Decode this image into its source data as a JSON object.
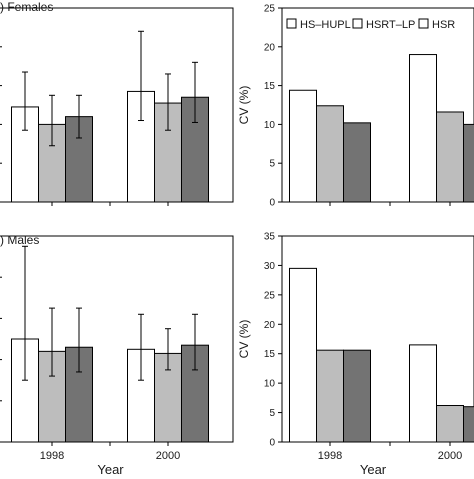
{
  "colors": {
    "HS-HUPL": "#ffffff",
    "HSRT-LP": "#bdbdbd",
    "HSRT-third": "#737373",
    "axis": "#000000"
  },
  "chart_data": [
    {
      "id": "females_mean",
      "type": "bar",
      "title": ") Females",
      "xlabel": "",
      "ylabel": "",
      "categories": [
        "1998",
        "2000"
      ],
      "category_labels_shown": false,
      "ylim": [
        0,
        100
      ],
      "series": [
        {
          "name": "HS–HUPL",
          "color": "#ffffff",
          "values": [
            49,
            57
          ],
          "err_high": [
            67,
            88
          ],
          "err_low": [
            37,
            42
          ]
        },
        {
          "name": "HSRT–LP",
          "color": "#bdbdbd",
          "values": [
            40,
            51
          ],
          "err_high": [
            55,
            66
          ],
          "err_low": [
            29,
            37
          ]
        },
        {
          "name": "HSRT",
          "color": "#737373",
          "values": [
            44,
            54
          ],
          "err_high": [
            55,
            72
          ],
          "err_low": [
            33,
            41
          ]
        }
      ]
    },
    {
      "id": "females_cv",
      "type": "bar",
      "title": "",
      "xlabel": "",
      "ylabel": "CV (%)",
      "categories": [
        "1998",
        "2000"
      ],
      "category_labels_shown": false,
      "yticks": [
        0,
        5,
        10,
        15,
        20,
        25
      ],
      "ylim": [
        0,
        25
      ],
      "legend": {
        "placement": "top",
        "entries": [
          "HS–HUPL",
          "HSRT–LP",
          "HSR"
        ]
      },
      "series": [
        {
          "name": "HS–HUPL",
          "color": "#ffffff",
          "values": [
            14.4,
            19.0
          ]
        },
        {
          "name": "HSRT–LP",
          "color": "#bdbdbd",
          "values": [
            12.4,
            11.6
          ]
        },
        {
          "name": "HSRT",
          "color": "#737373",
          "values": [
            10.2,
            10.0
          ]
        }
      ]
    },
    {
      "id": "males_mean",
      "type": "bar",
      "title": ") Males",
      "xlabel": "Year",
      "ylabel": "",
      "categories": [
        "1998",
        "2000"
      ],
      "category_labels_shown": true,
      "ylim": [
        0,
        100
      ],
      "series": [
        {
          "name": "HS–HUPL",
          "color": "#ffffff",
          "values": [
            50,
            45
          ],
          "err_high": [
            95,
            62
          ],
          "err_low": [
            30,
            30
          ]
        },
        {
          "name": "HSRT–LP",
          "color": "#bdbdbd",
          "values": [
            44,
            43
          ],
          "err_high": [
            65,
            55
          ],
          "err_low": [
            32,
            35
          ]
        },
        {
          "name": "HSRT",
          "color": "#737373",
          "values": [
            46,
            47
          ],
          "err_high": [
            65,
            62
          ],
          "err_low": [
            34,
            35
          ]
        }
      ]
    },
    {
      "id": "males_cv",
      "type": "bar",
      "title": "",
      "xlabel": "Year",
      "ylabel": "CV (%)",
      "categories": [
        "1998",
        "2000"
      ],
      "category_labels_shown": true,
      "yticks": [
        0,
        5,
        10,
        15,
        20,
        25,
        30,
        35
      ],
      "ylim": [
        0,
        35
      ],
      "series": [
        {
          "name": "HS–HUPL",
          "color": "#ffffff",
          "values": [
            29.5,
            16.5
          ]
        },
        {
          "name": "HSRT–LP",
          "color": "#bdbdbd",
          "values": [
            15.6,
            6.2
          ]
        },
        {
          "name": "HSRT",
          "color": "#737373",
          "values": [
            15.6,
            6.0
          ]
        }
      ]
    }
  ]
}
